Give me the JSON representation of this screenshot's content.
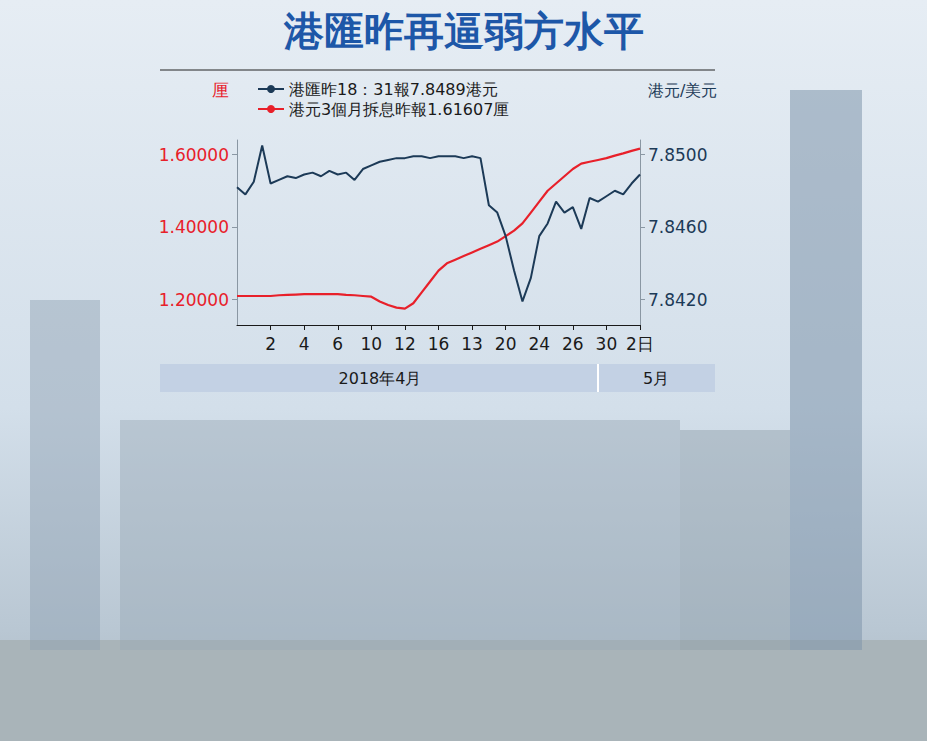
{
  "chart_data": {
    "type": "line",
    "title": "港匯昨再逼弱方水平",
    "categories": [
      null,
      null,
      null,
      null,
      "2",
      null,
      null,
      null,
      "4",
      null,
      null,
      null,
      "6",
      null,
      null,
      null,
      "10",
      null,
      null,
      null,
      "12",
      null,
      null,
      null,
      "16",
      null,
      null,
      null,
      "13",
      null,
      null,
      null,
      "20",
      null,
      null,
      null,
      "24",
      null,
      null,
      null,
      "26",
      null,
      null,
      null,
      "30",
      null,
      null,
      null,
      "2日"
    ],
    "series": [
      {
        "name": "港匯昨18：31報7.8489港元",
        "color": "#1c3a57",
        "axis": "y2",
        "values": [
          7.8482,
          7.8478,
          7.8485,
          7.8505,
          7.8484,
          7.8486,
          7.8488,
          7.8487,
          7.8489,
          7.849,
          7.8488,
          7.8491,
          7.8489,
          7.849,
          7.8486,
          7.8492,
          7.8494,
          7.8496,
          7.8497,
          7.8498,
          7.8498,
          7.8499,
          7.8499,
          7.8498,
          7.8499,
          7.8499,
          7.8499,
          7.8498,
          7.8499,
          7.8498,
          7.8472,
          7.8468,
          7.8455,
          7.8436,
          7.8419,
          7.8432,
          7.8455,
          7.8462,
          7.8474,
          7.8468,
          7.8471,
          7.8459,
          7.8476,
          7.8474,
          7.8477,
          7.848,
          7.8478,
          7.8484,
          7.8489
        ]
      },
      {
        "name": "港元3個月拆息昨報1.61607厘",
        "color": "#e8202a",
        "values": [
          1.21,
          1.21,
          1.21,
          1.21,
          1.21,
          1.212,
          1.213,
          1.214,
          1.215,
          1.215,
          1.215,
          1.215,
          1.215,
          1.213,
          1.212,
          1.21,
          1.208,
          1.195,
          1.185,
          1.178,
          1.175,
          1.19,
          1.22,
          1.25,
          1.28,
          1.3,
          1.31,
          1.32,
          1.33,
          1.34,
          1.35,
          1.36,
          1.375,
          1.39,
          1.41,
          1.44,
          1.47,
          1.5,
          1.52,
          1.54,
          1.56,
          1.575,
          1.58,
          1.585,
          1.59,
          1.597,
          1.603,
          1.61,
          1.61607
        ]
      }
    ],
    "ylabel": "厘",
    "y2label": "港元/美元",
    "ylim": [
      1.13,
      1.64
    ],
    "yticks": [
      {
        "value": 1.2,
        "label": "1.20000"
      },
      {
        "value": 1.4,
        "label": "1.40000"
      },
      {
        "value": 1.6,
        "label": "1.60000"
      }
    ],
    "y2lim": [
      7.8406,
      7.8508
    ],
    "y2ticks": [
      {
        "value": 7.842,
        "label": "7.8420"
      },
      {
        "value": 7.846,
        "label": "7.8460"
      },
      {
        "value": 7.85,
        "label": "7.8500"
      }
    ],
    "annotations": [
      "2018年4月",
      "5月"
    ],
    "grid": false,
    "legend": "top"
  }
}
